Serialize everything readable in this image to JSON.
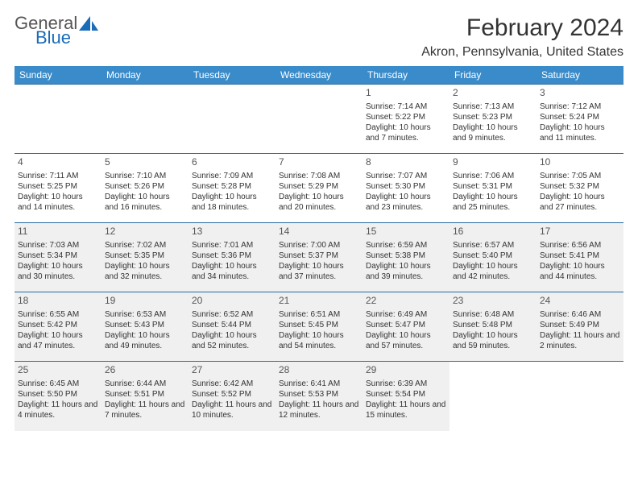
{
  "logo": {
    "general": "General",
    "blue": "Blue"
  },
  "title": "February 2024",
  "location": "Akron, Pennsylvania, United States",
  "colors": {
    "header_bg": "#3a8bc9",
    "header_text": "#ffffff",
    "row_border": "#2a6aa0",
    "shaded_bg": "#f0f0f0",
    "logo_blue": "#1a6bb8",
    "text": "#333333"
  },
  "dayHeaders": [
    "Sunday",
    "Monday",
    "Tuesday",
    "Wednesday",
    "Thursday",
    "Friday",
    "Saturday"
  ],
  "weeks": [
    [
      {
        "num": "",
        "sunrise": "",
        "sunset": "",
        "daylight": ""
      },
      {
        "num": "",
        "sunrise": "",
        "sunset": "",
        "daylight": ""
      },
      {
        "num": "",
        "sunrise": "",
        "sunset": "",
        "daylight": ""
      },
      {
        "num": "",
        "sunrise": "",
        "sunset": "",
        "daylight": ""
      },
      {
        "num": "1",
        "sunrise": "Sunrise: 7:14 AM",
        "sunset": "Sunset: 5:22 PM",
        "daylight": "Daylight: 10 hours and 7 minutes."
      },
      {
        "num": "2",
        "sunrise": "Sunrise: 7:13 AM",
        "sunset": "Sunset: 5:23 PM",
        "daylight": "Daylight: 10 hours and 9 minutes."
      },
      {
        "num": "3",
        "sunrise": "Sunrise: 7:12 AM",
        "sunset": "Sunset: 5:24 PM",
        "daylight": "Daylight: 10 hours and 11 minutes."
      }
    ],
    [
      {
        "num": "4",
        "sunrise": "Sunrise: 7:11 AM",
        "sunset": "Sunset: 5:25 PM",
        "daylight": "Daylight: 10 hours and 14 minutes."
      },
      {
        "num": "5",
        "sunrise": "Sunrise: 7:10 AM",
        "sunset": "Sunset: 5:26 PM",
        "daylight": "Daylight: 10 hours and 16 minutes."
      },
      {
        "num": "6",
        "sunrise": "Sunrise: 7:09 AM",
        "sunset": "Sunset: 5:28 PM",
        "daylight": "Daylight: 10 hours and 18 minutes."
      },
      {
        "num": "7",
        "sunrise": "Sunrise: 7:08 AM",
        "sunset": "Sunset: 5:29 PM",
        "daylight": "Daylight: 10 hours and 20 minutes."
      },
      {
        "num": "8",
        "sunrise": "Sunrise: 7:07 AM",
        "sunset": "Sunset: 5:30 PM",
        "daylight": "Daylight: 10 hours and 23 minutes."
      },
      {
        "num": "9",
        "sunrise": "Sunrise: 7:06 AM",
        "sunset": "Sunset: 5:31 PM",
        "daylight": "Daylight: 10 hours and 25 minutes."
      },
      {
        "num": "10",
        "sunrise": "Sunrise: 7:05 AM",
        "sunset": "Sunset: 5:32 PM",
        "daylight": "Daylight: 10 hours and 27 minutes."
      }
    ],
    [
      {
        "num": "11",
        "sunrise": "Sunrise: 7:03 AM",
        "sunset": "Sunset: 5:34 PM",
        "daylight": "Daylight: 10 hours and 30 minutes."
      },
      {
        "num": "12",
        "sunrise": "Sunrise: 7:02 AM",
        "sunset": "Sunset: 5:35 PM",
        "daylight": "Daylight: 10 hours and 32 minutes."
      },
      {
        "num": "13",
        "sunrise": "Sunrise: 7:01 AM",
        "sunset": "Sunset: 5:36 PM",
        "daylight": "Daylight: 10 hours and 34 minutes."
      },
      {
        "num": "14",
        "sunrise": "Sunrise: 7:00 AM",
        "sunset": "Sunset: 5:37 PM",
        "daylight": "Daylight: 10 hours and 37 minutes."
      },
      {
        "num": "15",
        "sunrise": "Sunrise: 6:59 AM",
        "sunset": "Sunset: 5:38 PM",
        "daylight": "Daylight: 10 hours and 39 minutes."
      },
      {
        "num": "16",
        "sunrise": "Sunrise: 6:57 AM",
        "sunset": "Sunset: 5:40 PM",
        "daylight": "Daylight: 10 hours and 42 minutes."
      },
      {
        "num": "17",
        "sunrise": "Sunrise: 6:56 AM",
        "sunset": "Sunset: 5:41 PM",
        "daylight": "Daylight: 10 hours and 44 minutes."
      }
    ],
    [
      {
        "num": "18",
        "sunrise": "Sunrise: 6:55 AM",
        "sunset": "Sunset: 5:42 PM",
        "daylight": "Daylight: 10 hours and 47 minutes."
      },
      {
        "num": "19",
        "sunrise": "Sunrise: 6:53 AM",
        "sunset": "Sunset: 5:43 PM",
        "daylight": "Daylight: 10 hours and 49 minutes."
      },
      {
        "num": "20",
        "sunrise": "Sunrise: 6:52 AM",
        "sunset": "Sunset: 5:44 PM",
        "daylight": "Daylight: 10 hours and 52 minutes."
      },
      {
        "num": "21",
        "sunrise": "Sunrise: 6:51 AM",
        "sunset": "Sunset: 5:45 PM",
        "daylight": "Daylight: 10 hours and 54 minutes."
      },
      {
        "num": "22",
        "sunrise": "Sunrise: 6:49 AM",
        "sunset": "Sunset: 5:47 PM",
        "daylight": "Daylight: 10 hours and 57 minutes."
      },
      {
        "num": "23",
        "sunrise": "Sunrise: 6:48 AM",
        "sunset": "Sunset: 5:48 PM",
        "daylight": "Daylight: 10 hours and 59 minutes."
      },
      {
        "num": "24",
        "sunrise": "Sunrise: 6:46 AM",
        "sunset": "Sunset: 5:49 PM",
        "daylight": "Daylight: 11 hours and 2 minutes."
      }
    ],
    [
      {
        "num": "25",
        "sunrise": "Sunrise: 6:45 AM",
        "sunset": "Sunset: 5:50 PM",
        "daylight": "Daylight: 11 hours and 4 minutes."
      },
      {
        "num": "26",
        "sunrise": "Sunrise: 6:44 AM",
        "sunset": "Sunset: 5:51 PM",
        "daylight": "Daylight: 11 hours and 7 minutes."
      },
      {
        "num": "27",
        "sunrise": "Sunrise: 6:42 AM",
        "sunset": "Sunset: 5:52 PM",
        "daylight": "Daylight: 11 hours and 10 minutes."
      },
      {
        "num": "28",
        "sunrise": "Sunrise: 6:41 AM",
        "sunset": "Sunset: 5:53 PM",
        "daylight": "Daylight: 11 hours and 12 minutes."
      },
      {
        "num": "29",
        "sunrise": "Sunrise: 6:39 AM",
        "sunset": "Sunset: 5:54 PM",
        "daylight": "Daylight: 11 hours and 15 minutes."
      },
      {
        "num": "",
        "sunrise": "",
        "sunset": "",
        "daylight": ""
      },
      {
        "num": "",
        "sunrise": "",
        "sunset": "",
        "daylight": ""
      }
    ]
  ],
  "shadedWeeks": [
    2,
    3,
    4
  ]
}
